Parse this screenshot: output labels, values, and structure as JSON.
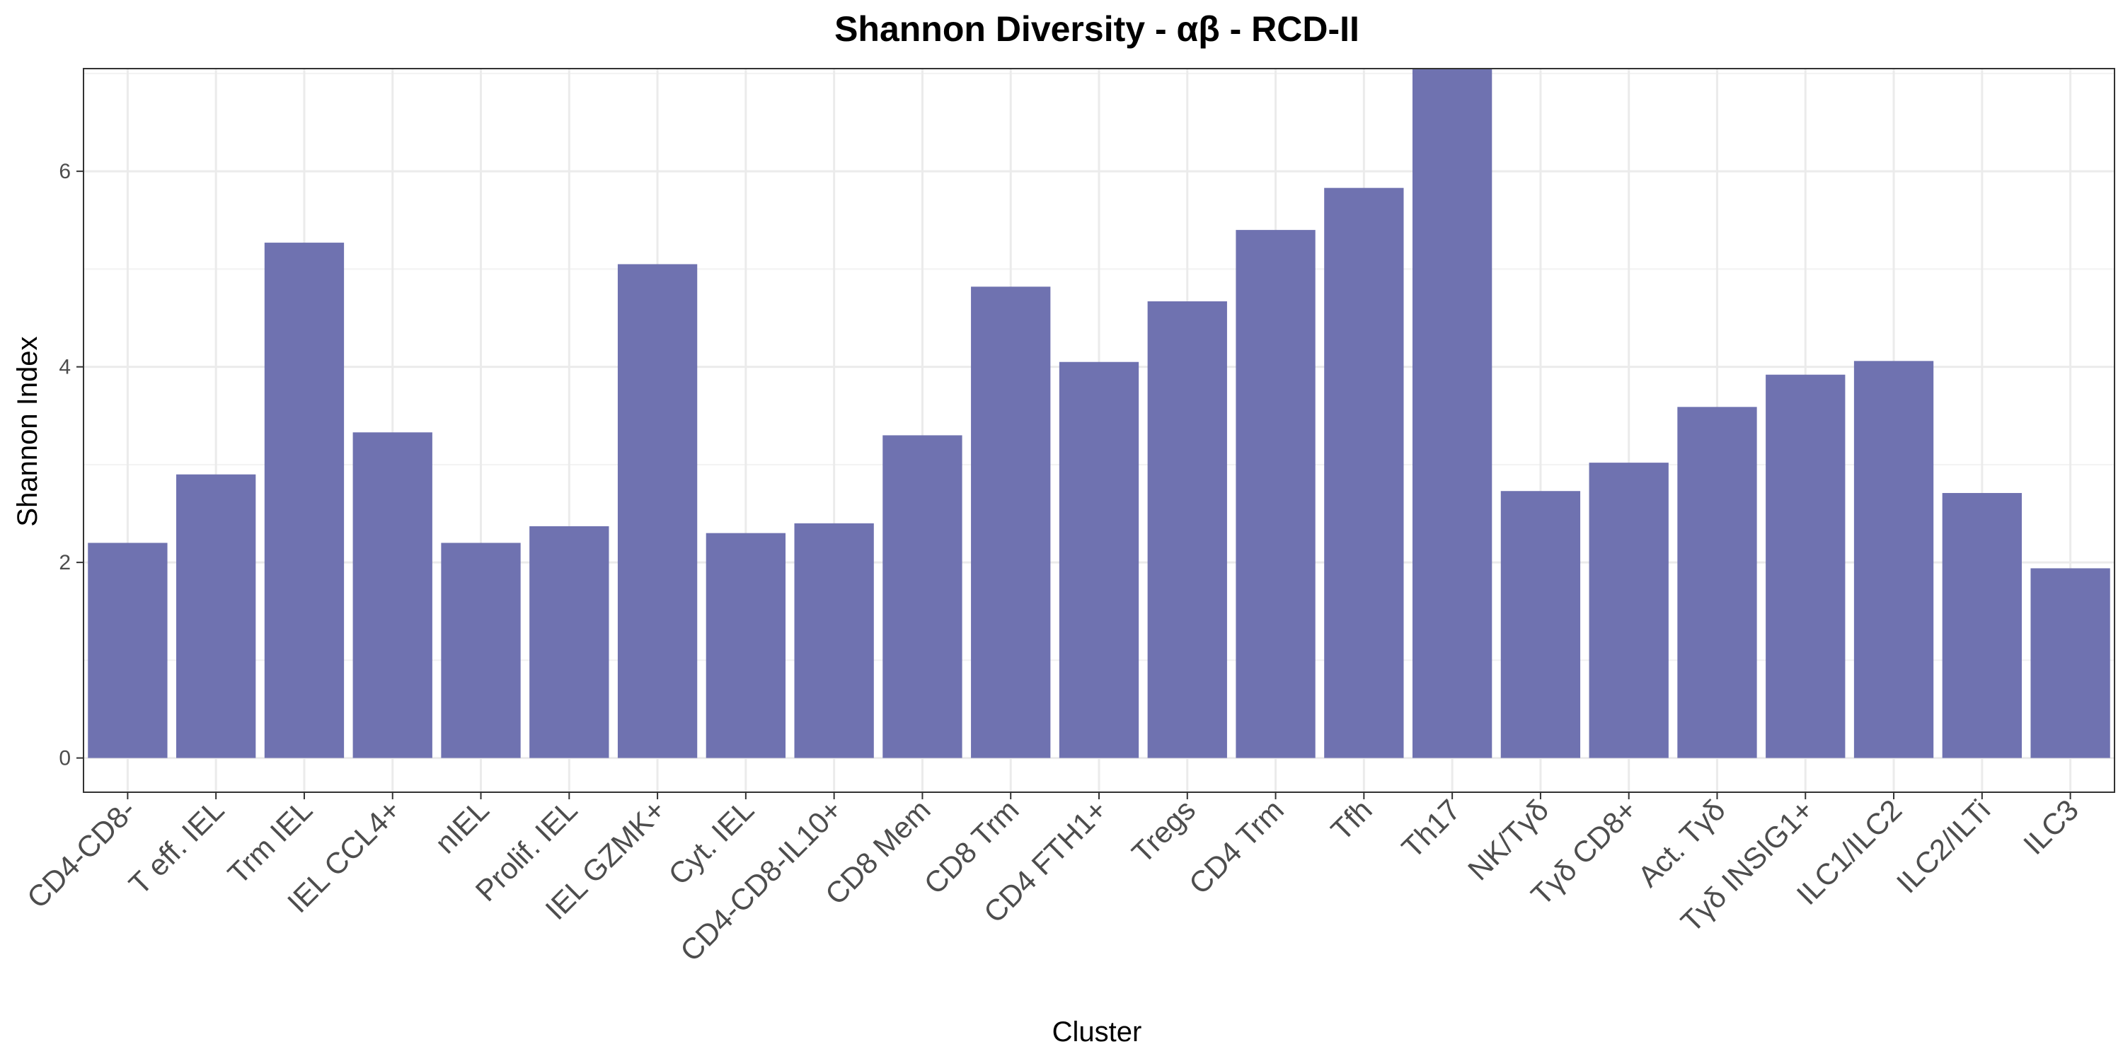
{
  "chart_data": {
    "type": "bar",
    "title": "Shannon Diversity - αβ - RCD-II",
    "xlabel": "Cluster",
    "ylabel": "Shannon Index",
    "ylim": [
      -0.35,
      7.05
    ],
    "yticks": [
      0,
      2,
      4,
      6
    ],
    "grid": true,
    "bar_color": "#6f72b0",
    "categories": [
      "CD4-CD8-",
      "T eff. IEL",
      "Trm IEL",
      "IEL CCL4+",
      "nIEL",
      "Prolif. IEL",
      "IEL GZMK+",
      "Cyt. IEL",
      "CD4-CD8-IL10+",
      "CD8 Mem",
      "CD8 Trm",
      "CD4 FTH1+",
      "Tregs",
      "CD4 Trm",
      "Tfh",
      "Th17",
      "NK/Tγδ",
      "Tγδ CD8+",
      "Act. Tγδ",
      "Tγδ INSIG1+",
      "ILC1/ILC2",
      "ILC2/ILTi",
      "ILC3"
    ],
    "values": [
      2.2,
      2.9,
      5.27,
      3.33,
      2.2,
      2.37,
      5.05,
      2.3,
      2.4,
      3.3,
      4.82,
      4.05,
      4.67,
      5.4,
      5.83,
      7.05,
      2.73,
      3.02,
      3.59,
      3.92,
      4.06,
      2.71,
      1.94
    ]
  }
}
